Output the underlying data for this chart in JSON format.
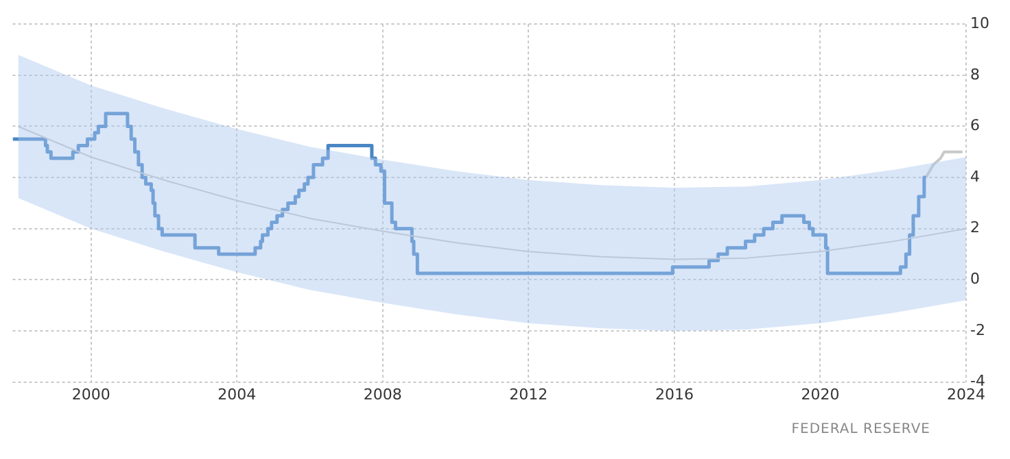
{
  "chart_data": {
    "type": "step",
    "series": [
      {
        "type": "line",
        "color": "#c8c8c8",
        "x": [
          1998,
          2000,
          2002,
          2004,
          2006,
          2008,
          2010,
          2012,
          2014,
          2016,
          2018,
          2020,
          2022,
          2024
        ],
        "values": [
          6.0,
          4.8,
          3.9,
          3.1,
          2.4,
          1.9,
          1.45,
          1.1,
          0.9,
          0.8,
          0.85,
          1.1,
          1.5,
          2.0
        ],
        "lower": [
          3.2,
          2.0,
          1.1,
          0.3,
          -0.4,
          -0.9,
          -1.35,
          -1.7,
          -1.9,
          -2.0,
          -1.95,
          -1.7,
          -1.3,
          -0.8
        ],
        "upper": [
          8.8,
          7.6,
          6.7,
          5.9,
          5.2,
          4.7,
          4.25,
          3.9,
          3.7,
          3.6,
          3.65,
          3.9,
          4.3,
          4.8
        ]
      },
      {
        "color": "#4a86c5",
        "x": [
          1997.85,
          1998.75,
          1998.8,
          1998.9,
          1999.5,
          1999.65,
          1999.9,
          2000.1,
          2000.2,
          2000.4,
          2001.0,
          2001.1,
          2001.2,
          2001.3,
          2001.4,
          2001.5,
          2001.65,
          2001.7,
          2001.75,
          2001.85,
          2001.95,
          2002.85,
          2003.5,
          2004.5,
          2004.65,
          2004.7,
          2004.85,
          2004.95,
          2005.1,
          2005.25,
          2005.4,
          2005.6,
          2005.7,
          2005.85,
          2005.95,
          2006.1,
          2006.35,
          2006.5,
          2007.7,
          2007.8,
          2007.95,
          2008.05,
          2008.25,
          2008.35,
          2008.8,
          2008.85,
          2008.95,
          2015.95,
          2016.95,
          2017.2,
          2017.45,
          2017.95,
          2018.2,
          2018.45,
          2018.7,
          2018.95,
          2019.55,
          2019.7,
          2019.8,
          2020.15,
          2020.2,
          2022.2,
          2022.35,
          2022.45,
          2022.55,
          2022.7,
          2022.85,
          2022.9
        ],
        "values": [
          5.5,
          5.25,
          5.0,
          4.75,
          5.0,
          5.25,
          5.5,
          5.75,
          6.0,
          6.5,
          6.0,
          5.5,
          5.0,
          4.5,
          4.0,
          3.75,
          3.5,
          3.0,
          2.5,
          2.0,
          1.75,
          1.25,
          1.0,
          1.25,
          1.5,
          1.75,
          2.0,
          2.25,
          2.5,
          2.75,
          3.0,
          3.25,
          3.5,
          3.75,
          4.0,
          4.5,
          4.75,
          5.25,
          4.75,
          4.5,
          4.25,
          3.0,
          2.25,
          2.0,
          1.5,
          1.0,
          0.25,
          0.5,
          0.75,
          1.0,
          1.25,
          1.5,
          1.75,
          2.0,
          2.25,
          2.5,
          2.25,
          2.0,
          1.75,
          1.25,
          0.25,
          0.5,
          1.0,
          1.75,
          2.5,
          3.25,
          4.0,
          4.0
        ]
      },
      {
        "type": "line",
        "color": "#c8c8c8",
        "x": [
          2022.9,
          2023.1,
          2023.3,
          2023.4,
          2023.9
        ],
        "values": [
          4.0,
          4.5,
          4.75,
          5.0,
          5.0
        ]
      }
    ],
    "xlim": [
      1997.85,
      2024
    ],
    "xticks": [
      2000,
      2004,
      2008,
      2012,
      2016,
      2020,
      2024
    ],
    "ylim": [
      -4,
      10
    ],
    "yticks": [
      -4,
      -2,
      0,
      2,
      4,
      6,
      8,
      10
    ],
    "grid": true,
    "legend": false,
    "marker": "none",
    "line_style": "solid",
    "annotations": [
      "FEDERAL RESERVE"
    ]
  }
}
